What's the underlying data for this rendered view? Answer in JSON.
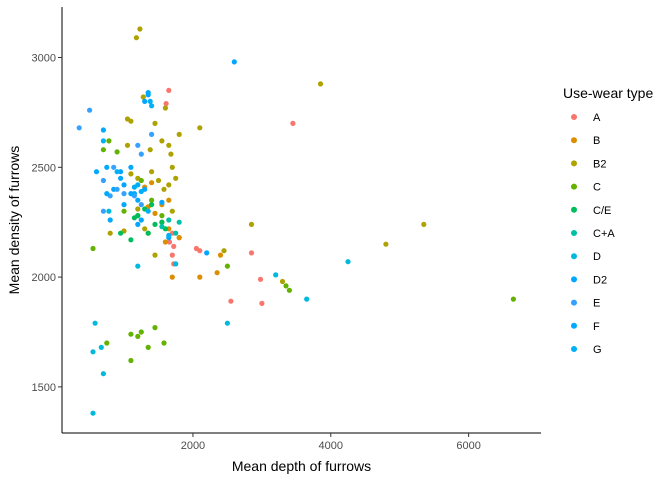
{
  "chart_data": {
    "type": "scatter",
    "title": "",
    "xlabel": "Mean depth of furrows",
    "ylabel": "Mean density of furrows",
    "xlim": [
      100,
      7050
    ],
    "ylim": [
      1290,
      3230
    ],
    "xticks": [
      2000,
      4000,
      6000
    ],
    "xtick_labels": [
      "2000",
      "4000",
      "6000"
    ],
    "yticks": [
      1500,
      2000,
      2500,
      3000
    ],
    "ytick_labels": [
      "1500",
      "2000",
      "2500",
      "3000"
    ],
    "grid": false,
    "legend": {
      "title": "Use-wear type",
      "placement": "right",
      "entries": [
        "A",
        "B",
        "B2",
        "C",
        "C/E",
        "C+A",
        "D",
        "D2",
        "E",
        "F",
        "G"
      ]
    },
    "series": [
      {
        "name": "A",
        "color": "#F8766D",
        "points": [
          [
            1650,
            2850
          ],
          [
            1610,
            2790
          ],
          [
            3450,
            2700
          ],
          [
            1700,
            2200
          ],
          [
            1660,
            2160
          ],
          [
            1720,
            2140
          ],
          [
            2050,
            2130
          ],
          [
            1700,
            2100
          ],
          [
            2850,
            2110
          ],
          [
            2980,
            1990
          ],
          [
            1720,
            2060
          ],
          [
            2100,
            2120
          ],
          [
            2550,
            1890
          ],
          [
            3000,
            1880
          ],
          [
            1800,
            2180
          ]
        ]
      },
      {
        "name": "B",
        "color": "#DB8E00",
        "points": [
          [
            1650,
            2350
          ],
          [
            1550,
            2330
          ],
          [
            1650,
            2220
          ],
          [
            1400,
            2430
          ],
          [
            1600,
            2160
          ],
          [
            1350,
            2320
          ],
          [
            1700,
            2000
          ],
          [
            2100,
            2000
          ],
          [
            2400,
            2100
          ],
          [
            1450,
            2290
          ],
          [
            1800,
            2180
          ],
          [
            2350,
            2020
          ],
          [
            1300,
            2410
          ],
          [
            1550,
            2250
          ]
        ]
      },
      {
        "name": "B2",
        "color": "#AEA200",
        "points": [
          [
            1230,
            3130
          ],
          [
            1180,
            3090
          ],
          [
            3850,
            2880
          ],
          [
            1280,
            2820
          ],
          [
            1600,
            2770
          ],
          [
            1050,
            2720
          ],
          [
            1100,
            2710
          ],
          [
            1450,
            2700
          ],
          [
            2100,
            2680
          ],
          [
            1800,
            2650
          ],
          [
            1650,
            2600
          ],
          [
            1550,
            2620
          ],
          [
            1380,
            2580
          ],
          [
            1050,
            2600
          ],
          [
            1700,
            2500
          ],
          [
            1100,
            2470
          ],
          [
            1200,
            2450
          ],
          [
            1500,
            2440
          ],
          [
            1650,
            2420
          ],
          [
            2850,
            2240
          ],
          [
            5350,
            2240
          ],
          [
            1300,
            2220
          ],
          [
            4800,
            2150
          ],
          [
            2450,
            2120
          ],
          [
            3300,
            1980
          ],
          [
            1000,
            2210
          ],
          [
            1750,
            2450
          ],
          [
            1580,
            2400
          ],
          [
            800,
            2200
          ],
          [
            1700,
            2300
          ],
          [
            1350,
            2200
          ],
          [
            1400,
            2480
          ],
          [
            1200,
            2310
          ],
          [
            1450,
            2100
          ],
          [
            1680,
            2560
          ]
        ]
      },
      {
        "name": "C",
        "color": "#64B200",
        "points": [
          [
            780,
            2620
          ],
          [
            700,
            2580
          ],
          [
            900,
            2570
          ],
          [
            1250,
            2440
          ],
          [
            1400,
            2350
          ],
          [
            1550,
            2280
          ],
          [
            2500,
            2050
          ],
          [
            3350,
            1960
          ],
          [
            3400,
            1940
          ],
          [
            6650,
            1900
          ],
          [
            1100,
            1620
          ],
          [
            1450,
            1770
          ],
          [
            1100,
            1740
          ],
          [
            1200,
            1730
          ],
          [
            1250,
            1750
          ],
          [
            1350,
            1680
          ],
          [
            750,
            1700
          ],
          [
            550,
            2130
          ],
          [
            1580,
            1700
          ],
          [
            1000,
            2300
          ],
          [
            1200,
            2280
          ]
        ]
      },
      {
        "name": "C/E",
        "color": "#00BD5C",
        "points": [
          [
            1200,
            2280
          ],
          [
            1300,
            2310
          ],
          [
            1150,
            2270
          ],
          [
            1100,
            2170
          ],
          [
            1450,
            2240
          ],
          [
            1400,
            2330
          ],
          [
            1600,
            2220
          ],
          [
            1350,
            2200
          ],
          [
            1550,
            2250
          ],
          [
            950,
            2200
          ]
        ]
      },
      {
        "name": "C+A",
        "color": "#00C1A7",
        "points": [
          [
            1550,
            2230
          ],
          [
            1650,
            2260
          ],
          [
            1750,
            2200
          ],
          [
            1800,
            2250
          ]
        ]
      },
      {
        "name": "D",
        "color": "#00BADE",
        "points": [
          [
            550,
            1380
          ],
          [
            580,
            1790
          ],
          [
            550,
            1660
          ],
          [
            670,
            1680
          ],
          [
            700,
            1560
          ],
          [
            4250,
            2070
          ],
          [
            2500,
            1790
          ],
          [
            3650,
            1900
          ],
          [
            3200,
            2010
          ],
          [
            1750,
            2060
          ],
          [
            1200,
            2050
          ],
          [
            780,
            2300
          ]
        ]
      },
      {
        "name": "D2",
        "color": "#00A6FF",
        "points": [
          [
            1350,
            2830
          ],
          [
            1300,
            2800
          ],
          [
            950,
            2480
          ],
          [
            1000,
            2420
          ],
          [
            1150,
            2380
          ],
          [
            1250,
            2260
          ],
          [
            1200,
            2240
          ],
          [
            1300,
            2400
          ],
          [
            1200,
            2350
          ],
          [
            850,
            2400
          ],
          [
            1650,
            2180
          ],
          [
            1550,
            2340
          ],
          [
            2200,
            2110
          ],
          [
            2600,
            2980
          ]
        ]
      },
      {
        "name": "E",
        "color": "#35A2FF",
        "points": [
          [
            500,
            2760
          ],
          [
            350,
            2680
          ],
          [
            850,
            2500
          ],
          [
            700,
            2440
          ],
          [
            800,
            2370
          ],
          [
            900,
            2400
          ],
          [
            1000,
            2380
          ],
          [
            1150,
            2370
          ],
          [
            700,
            2300
          ],
          [
            1250,
            2330
          ],
          [
            1400,
            2650
          ],
          [
            1200,
            2600
          ],
          [
            1250,
            2560
          ]
        ]
      },
      {
        "name": "F",
        "color": "#00A9FF",
        "points": [
          [
            1350,
            2840
          ],
          [
            1100,
            2500
          ],
          [
            700,
            2670
          ],
          [
            750,
            2500
          ],
          [
            750,
            2380
          ],
          [
            600,
            2480
          ],
          [
            1100,
            2380
          ],
          [
            800,
            2260
          ],
          [
            1000,
            2330
          ],
          [
            950,
            2450
          ]
        ]
      },
      {
        "name": "G",
        "color": "#00B0F6",
        "points": [
          [
            1380,
            2800
          ],
          [
            1400,
            2780
          ],
          [
            1200,
            2420
          ],
          [
            1350,
            2300
          ],
          [
            1250,
            2390
          ],
          [
            1650,
            2190
          ],
          [
            1150,
            2410
          ],
          [
            900,
            2480
          ],
          [
            700,
            2620
          ]
        ]
      }
    ]
  }
}
